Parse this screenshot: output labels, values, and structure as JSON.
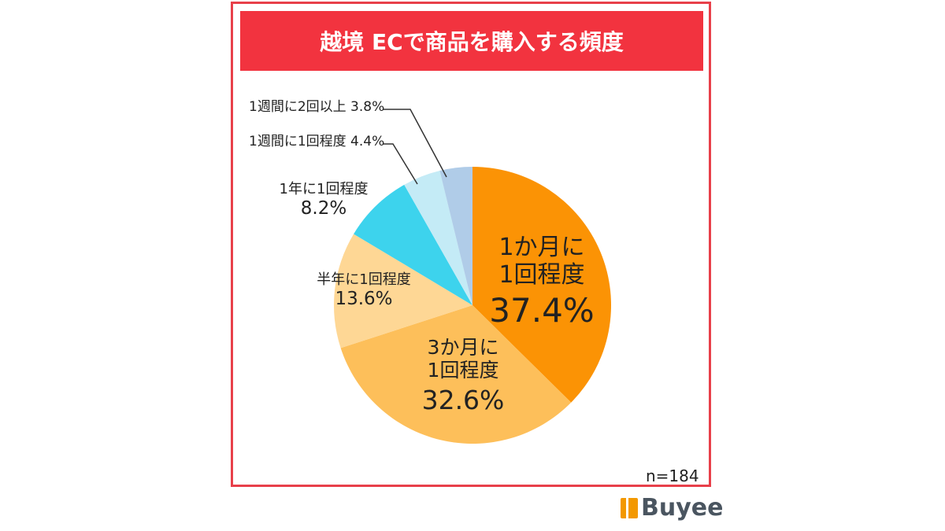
{
  "chart_data": {
    "type": "pie",
    "title": "越境 ECで商品を購入する頻度",
    "note": "n=184",
    "slices": [
      {
        "label": "1か月に1回程度",
        "value": 37.4,
        "display": "37.4%",
        "color": "#fb9305"
      },
      {
        "label": "3か月に1回程度",
        "value": 32.6,
        "display": "32.6%",
        "color": "#fdbf5a"
      },
      {
        "label": "半年に1回程度",
        "value": 13.6,
        "display": "13.6%",
        "color": "#fed795"
      },
      {
        "label": "1年に1回程度",
        "value": 8.2,
        "display": "8.2%",
        "color": "#3dd3ed"
      },
      {
        "label": "1週間に1回程度",
        "value": 4.4,
        "display": "4.4%",
        "color": "#c4ebf6"
      },
      {
        "label": "1週間に2回以上",
        "value": 3.8,
        "display": "3.8%",
        "color": "#b0cce8"
      }
    ],
    "labels": {
      "s0a": "1か月に",
      "s0b": "1回程度",
      "s1a": "3か月に",
      "s1b": "1回程度",
      "s4": "1週間に1回程度 4.4%",
      "s5": "1週間に2回以上 3.8%"
    }
  },
  "brand": "Buyee"
}
